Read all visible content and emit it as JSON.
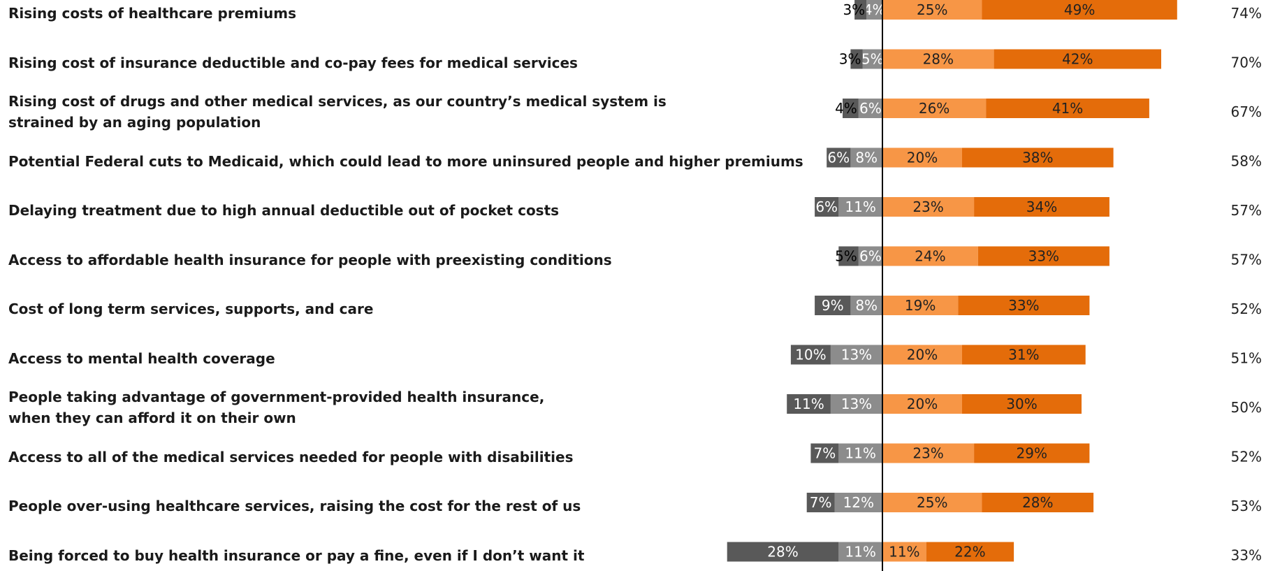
{
  "chart_data": {
    "type": "diverging-bar",
    "categories": [
      "Rising costs of healthcare premiums",
      "Rising cost of insurance deductible and co-pay fees for medical services",
      "Rising cost of drugs and other medical services, as our country’s medical system is\nstrained by an aging population",
      "Potential Federal cuts to Medicaid, which could lead to more uninsured people and higher premiums",
      "Delaying treatment due to high annual deductible out of pocket costs",
      "Access to affordable health insurance for people with preexisting conditions",
      "Cost of long term services, supports, and care",
      "Access to mental health coverage",
      "People taking advantage of government-provided health insurance,\nwhen they can afford it on their own",
      "Access to all of the medical services needed for people with disabilities",
      "People over-using healthcare services, raising the cost for the rest of us",
      "Being forced to buy health insurance or pay a fine, even if I don’t want it"
    ],
    "series": [
      {
        "color": "#595959",
        "side": "left",
        "values": [
          3,
          3,
          4,
          6,
          6,
          5,
          9,
          10,
          11,
          7,
          7,
          28
        ],
        "value_labels": [
          "3%",
          "3%",
          "4%",
          "6%",
          "6%",
          "5%",
          "9%",
          "10%",
          "11%",
          "7%",
          "7%",
          "28%"
        ]
      },
      {
        "color": "#8c8c8c",
        "side": "left",
        "values": [
          4,
          5,
          6,
          8,
          11,
          6,
          8,
          13,
          13,
          11,
          12,
          11
        ],
        "value_labels": [
          "4%",
          "5%",
          "6%",
          "8%",
          "11%",
          "6%",
          "8%",
          "13%",
          "13%",
          "11%",
          "12%",
          "11%"
        ]
      },
      {
        "color": "#f79646",
        "side": "right",
        "values": [
          25,
          28,
          26,
          20,
          23,
          24,
          19,
          20,
          20,
          23,
          25,
          11
        ],
        "value_labels": [
          "25%",
          "28%",
          "26%",
          "20%",
          "23%",
          "24%",
          "19%",
          "20%",
          "20%",
          "23%",
          "25%",
          "11%"
        ]
      },
      {
        "color": "#e46c0a",
        "side": "right",
        "values": [
          49,
          42,
          41,
          38,
          34,
          33,
          33,
          31,
          30,
          29,
          28,
          22
        ],
        "value_labels": [
          "49%",
          "42%",
          "41%",
          "38%",
          "34%",
          "33%",
          "33%",
          "31%",
          "30%",
          "29%",
          "28%",
          "22%"
        ]
      }
    ],
    "totals": [
      74,
      70,
      67,
      58,
      57,
      57,
      52,
      51,
      50,
      52,
      53,
      33
    ],
    "total_labels": [
      "74%",
      "70%",
      "67%",
      "58%",
      "57%",
      "57%",
      "52%",
      "51%",
      "50%",
      "52%",
      "53%",
      "33%"
    ]
  }
}
